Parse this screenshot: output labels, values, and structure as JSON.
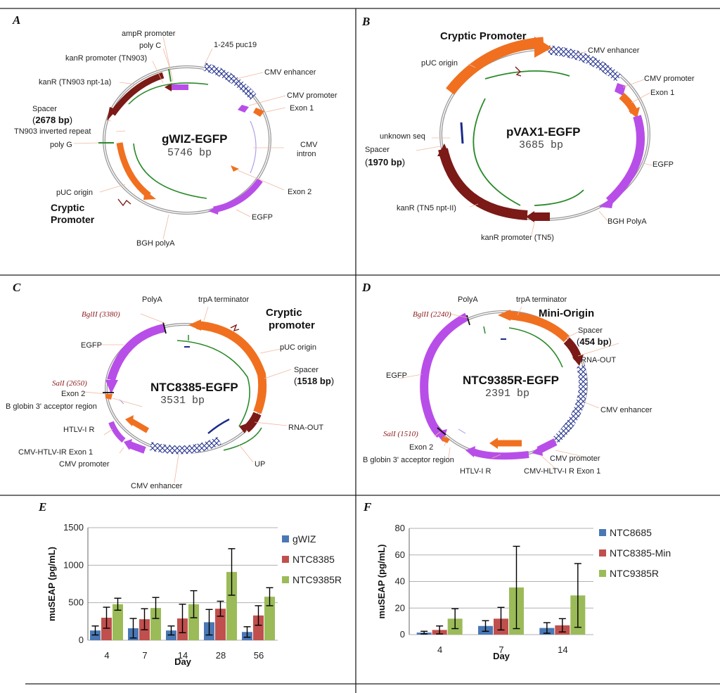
{
  "colors": {
    "orange": "#f07020",
    "purple": "#b84ee8",
    "maroon": "#7b1a16",
    "green": "#2a8a2a",
    "navy": "#1a2a8a",
    "blue": "#4a78b4",
    "red": "#c0504d",
    "lightgreen": "#9bbb59",
    "grey": "#9a9a9a"
  },
  "panels": {
    "A": {
      "letter": "A",
      "name": "gWIZ-EGFP",
      "size": "5746 bp",
      "labels": {
        "ampR_promoter": "ampR promoter",
        "poly_c": "poly C",
        "kanR_promoter": "kanR promoter (TN903)",
        "puc19": "1-245 puc19",
        "cmv_enhancer": "CMV enhancer",
        "kanR": "kanR (TN903 npt-1a)",
        "cmv_promoter": "CMV promoter",
        "spacer": "Spacer",
        "spacer_size": "2678 bp",
        "exon1": "Exon 1",
        "tn903_ir": "TN903 inverted repeat",
        "cmv_intron_1": "CMV",
        "cmv_intron_2": "intron",
        "poly_g": "poly G",
        "exon2": "Exon 2",
        "puc_origin": "pUC origin",
        "cryptic_1": "Cryptic",
        "cryptic_2": "Promoter",
        "egfp": "EGFP",
        "bgh": "BGH polyA"
      }
    },
    "B": {
      "letter": "B",
      "name": "pVAX1-EGFP",
      "size": "3685 bp",
      "labels": {
        "cryptic": "Cryptic Promoter",
        "cmv_enhancer": "CMV enhancer",
        "puc_origin": "pUC origin",
        "cmv_promoter": "CMV promoter",
        "exon1": "Exon 1",
        "unknown_seq": "unknown seq",
        "spacer": "Spacer",
        "spacer_size": "1970 bp",
        "egfp": "EGFP",
        "kanR": "kanR (TN5 npt-II)",
        "bgh": "BGH PolyA",
        "kanR_promoter": "kanR promoter (TN5)"
      }
    },
    "C": {
      "letter": "C",
      "name": "NTC8385-EGFP",
      "size": "3531 bp",
      "labels": {
        "polyA": "PolyA",
        "trpA": "trpA terminator",
        "bglII": "BglII (3380)",
        "cryptic_1": "Cryptic",
        "cryptic_2": "promoter",
        "egfp": "EGFP",
        "puc_origin": "pUC origin",
        "spacer": "Spacer",
        "spacer_size": "1518 bp",
        "sali": "SalI (2650)",
        "exon2": "Exon 2",
        "b_globin": "B globin 3' acceptor region",
        "htlv": "HTLV-I R",
        "rna_out": "RNA-OUT",
        "cmv_htlv": "CMV-HTLV-IR Exon 1",
        "cmv_promoter": "CMV promoter",
        "up": "UP",
        "cmv_enhancer": "CMV enhancer"
      }
    },
    "D": {
      "letter": "D",
      "name": "NTC9385R-EGFP",
      "size": "2391 bp",
      "labels": {
        "polyA": "PolyA",
        "trpA": "trpA terminator",
        "bglII": "BglII (2240)",
        "mini_origin": "Mini-Origin",
        "spacer": "Spacer",
        "spacer_size": "454 bp",
        "rna_out": "RNA-OUT",
        "egfp": "EGFP",
        "cmv_enhancer": "CMV enhancer",
        "sali": "SalI (1510)",
        "cmv_promoter": "CMV promoter",
        "exon2": "Exon 2",
        "cmv_hltv": "CMV-HLTV-I R Exon 1",
        "b_globin": "B globin 3' acceptor region",
        "htlv": "HTLV-I R"
      }
    }
  },
  "chart_data": [
    {
      "panel": "E",
      "type": "bar",
      "title": "",
      "xlabel": "Day",
      "ylabel": "muSEAP (pg/mL)",
      "categories": [
        "4",
        "7",
        "14",
        "28",
        "56"
      ],
      "ylim": [
        0,
        1500
      ],
      "yticks": [
        0,
        500,
        1000,
        1500
      ],
      "series": [
        {
          "name": "gWIZ",
          "values": [
            130,
            160,
            130,
            240,
            110
          ],
          "errors": [
            60,
            130,
            60,
            170,
            70
          ]
        },
        {
          "name": "NTC8385",
          "values": [
            300,
            280,
            290,
            420,
            330
          ],
          "errors": [
            140,
            140,
            190,
            100,
            130
          ]
        },
        {
          "name": "NTC9385R",
          "values": [
            480,
            430,
            480,
            910,
            580
          ],
          "errors": [
            80,
            140,
            180,
            310,
            120
          ]
        }
      ]
    },
    {
      "panel": "F",
      "type": "bar",
      "title": "",
      "xlabel": "Day",
      "ylabel": "muSEAP (pg/mL)",
      "categories": [
        "4",
        "7",
        "14"
      ],
      "ylim": [
        0,
        80
      ],
      "yticks": [
        0,
        20,
        40,
        60,
        80
      ],
      "series": [
        {
          "name": "NTC8685",
          "values": [
            1.5,
            6.5,
            5
          ],
          "errors": [
            1,
            4,
            4
          ]
        },
        {
          "name": "NTC8385-Min",
          "values": [
            3.5,
            12,
            7
          ],
          "errors": [
            3,
            8.5,
            5
          ]
        },
        {
          "name": "NTC9385R",
          "values": [
            12,
            35.5,
            29.5
          ],
          "errors": [
            7.5,
            31,
            24
          ]
        }
      ]
    }
  ]
}
